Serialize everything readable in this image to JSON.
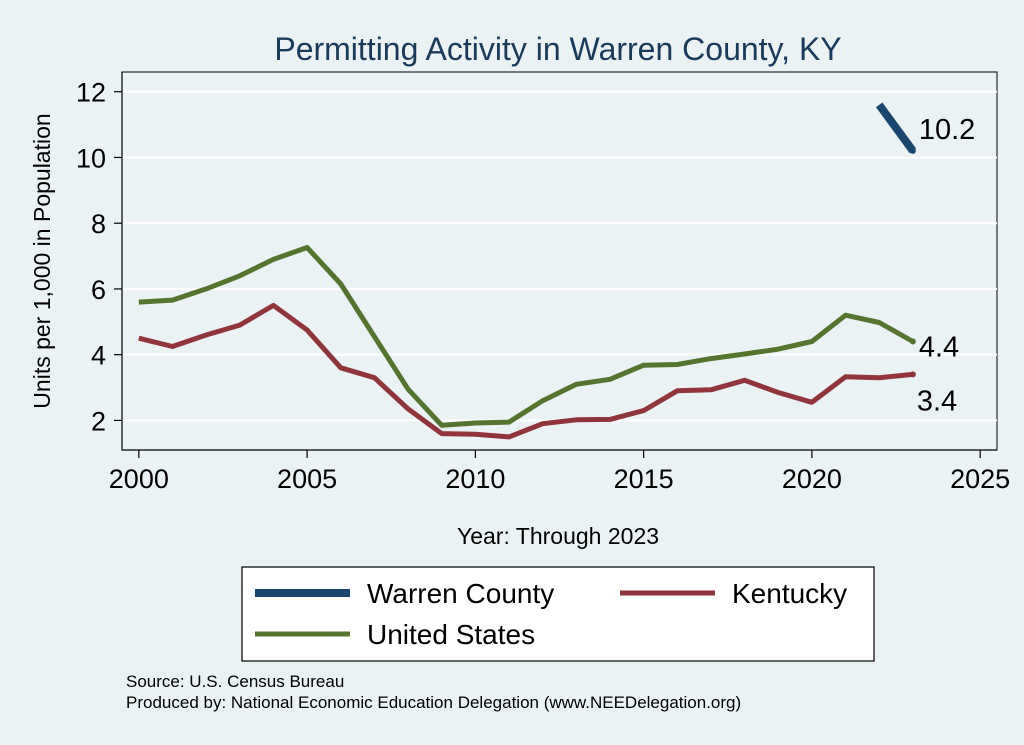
{
  "chart_data": {
    "type": "line",
    "title": "Permitting Activity in Warren County, KY",
    "xlabel": "Year: Through 2023",
    "ylabel": "Units per 1,000 in Population",
    "xlim": [
      1999.5,
      2025.5
    ],
    "ylim": [
      1.1,
      12.6
    ],
    "x_ticks": [
      2000,
      2005,
      2010,
      2015,
      2020,
      2025
    ],
    "y_ticks": [
      2,
      4,
      6,
      8,
      10,
      12
    ],
    "grid": "horizontal",
    "legend_position": "bottom",
    "series": [
      {
        "name": "Warren County",
        "color": "#1a476f",
        "x": [
          2022,
          2023
        ],
        "values": [
          11.6,
          10.2
        ],
        "end_label": "10.2"
      },
      {
        "name": "Kentucky",
        "color": "#90353b",
        "x": [
          2000,
          2001,
          2002,
          2003,
          2004,
          2005,
          2006,
          2007,
          2008,
          2009,
          2010,
          2011,
          2012,
          2013,
          2014,
          2015,
          2016,
          2017,
          2018,
          2019,
          2020,
          2021,
          2022,
          2023
        ],
        "values": [
          4.5,
          4.25,
          4.6,
          4.9,
          5.5,
          4.75,
          3.6,
          3.3,
          2.35,
          1.6,
          1.58,
          1.5,
          1.9,
          2.02,
          2.03,
          2.3,
          2.9,
          2.93,
          3.22,
          2.85,
          2.55,
          3.33,
          3.3,
          3.4
        ],
        "end_label": "3.4"
      },
      {
        "name": "United States",
        "color": "#55752f",
        "x": [
          2000,
          2001,
          2002,
          2003,
          2004,
          2005,
          2006,
          2007,
          2008,
          2009,
          2010,
          2011,
          2012,
          2013,
          2014,
          2015,
          2016,
          2017,
          2018,
          2019,
          2020,
          2021,
          2022,
          2023
        ],
        "values": [
          5.6,
          5.66,
          6.0,
          6.4,
          6.9,
          7.26,
          6.15,
          4.55,
          2.95,
          1.85,
          1.92,
          1.95,
          2.6,
          3.1,
          3.25,
          3.68,
          3.7,
          3.88,
          4.02,
          4.17,
          4.4,
          5.2,
          4.98,
          4.4
        ],
        "end_label": "4.4"
      }
    ]
  },
  "legend": {
    "items": [
      {
        "label": "Warren County",
        "color": "#1a476f"
      },
      {
        "label": "Kentucky",
        "color": "#90353b"
      },
      {
        "label": "United States",
        "color": "#55752f"
      }
    ]
  },
  "notes": {
    "source": "Source: U.S. Census Bureau",
    "produced_by": "Produced by: National Economic Education Delegation (www.NEEDelegation.org)"
  }
}
